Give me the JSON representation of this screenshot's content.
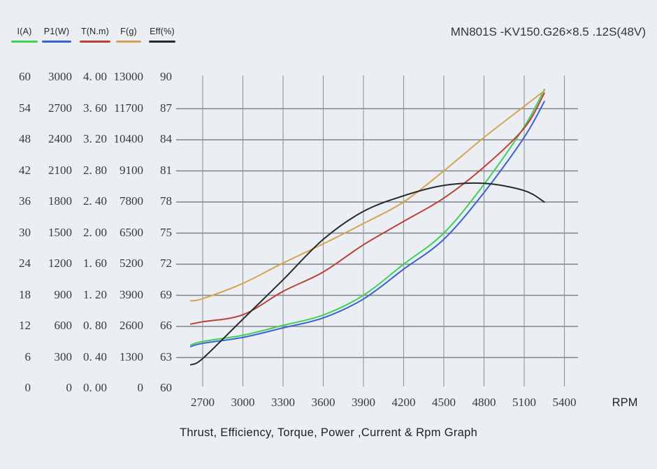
{
  "title": "MN801S -KV150.G26×8.5 .12S(48V)",
  "caption": "Thrust, Efficiency, Torque, Power ,Current & Rpm Graph",
  "legend": {
    "items": [
      {
        "label": "I(A)",
        "color": "#3ed158"
      },
      {
        "label": "P1(W)",
        "color": "#3d5fd6"
      },
      {
        "label": "T(N.m)",
        "color": "#bd4038"
      },
      {
        "label": "F(g)",
        "color": "#d5a351"
      },
      {
        "label": "Eff(%)",
        "color": "#29292b"
      }
    ]
  },
  "axis_labels": {
    "columns": [
      "I(A)",
      "P1(W)",
      "T(N.m)",
      "F(g)",
      "Eff(%)"
    ],
    "rows": [
      [
        "60",
        "3000",
        "4. 00",
        "13000",
        "90"
      ],
      [
        "54",
        "2700",
        "3. 60",
        "11700",
        "87"
      ],
      [
        "48",
        "2400",
        "3. 20",
        "10400",
        "84"
      ],
      [
        "42",
        "2100",
        "2. 80",
        "9100",
        "81"
      ],
      [
        "36",
        "1800",
        "2. 40",
        "7800",
        "78"
      ],
      [
        "30",
        "1500",
        "2. 00",
        "6500",
        "75"
      ],
      [
        "24",
        "1200",
        "1. 60",
        "5200",
        "72"
      ],
      [
        "18",
        "900",
        "1. 20",
        "3900",
        "69"
      ],
      [
        "12",
        "600",
        "0. 80",
        "2600",
        "66"
      ],
      [
        "6",
        "300",
        "0. 40",
        "1300",
        "63"
      ],
      [
        "0",
        "0",
        "0. 00",
        "0",
        "60"
      ]
    ]
  },
  "x_axis": {
    "ticks": [
      "2700",
      "3000",
      "3300",
      "3600",
      "3900",
      "4200",
      "4500",
      "4800",
      "5100",
      "5400"
    ],
    "unit": "RPM"
  },
  "colors": {
    "background": "#ebeff3",
    "grid_horizontal": "#7d828c",
    "grid_vertical": "#8f949c",
    "text": "#36393d"
  },
  "chart_data": {
    "type": "line",
    "title": "MN801S -KV150.G26×8.5 .12S(48V)",
    "xlabel": "RPM",
    "x_range": [
      2550,
      5400
    ],
    "grid": "on",
    "legend_position": "top-left",
    "x_rpm": [
      2610,
      2700,
      3000,
      3300,
      3600,
      3900,
      4200,
      4500,
      4800,
      5100,
      5250
    ],
    "series": [
      {
        "name": "I(A)",
        "axis": "I",
        "color": "#3ed158",
        "values": [
          8.4,
          9.1,
          10.3,
          12.2,
          14.2,
          18.0,
          24.0,
          30.0,
          39.4,
          50.5,
          57.7
        ]
      },
      {
        "name": "P1(W)",
        "axis": "P1",
        "color": "#3d5fd6",
        "values": [
          405,
          437,
          494,
          586,
          682,
          864,
          1152,
          1440,
          1891,
          2424,
          2770
        ]
      },
      {
        "name": "T(N.m)",
        "axis": "T",
        "color": "#bd4038",
        "values": [
          0.83,
          0.86,
          0.95,
          1.25,
          1.5,
          1.85,
          2.15,
          2.45,
          2.85,
          3.35,
          3.8
        ]
      },
      {
        "name": "F(g)",
        "axis": "F",
        "color": "#d5a351",
        "values": [
          3670,
          3760,
          4400,
          5250,
          6050,
          6900,
          7800,
          9100,
          10500,
          11800,
          12450
        ]
      },
      {
        "name": "Eff(%)",
        "axis": "Eff",
        "color": "#29292b",
        "values": [
          62.3,
          62.9,
          66.7,
          70.5,
          74.4,
          77.1,
          78.6,
          79.6,
          79.8,
          79.1,
          78.0
        ]
      }
    ],
    "axes": {
      "I": {
        "min": 0,
        "max": 60,
        "step": 6
      },
      "P1": {
        "min": 0,
        "max": 3000,
        "step": 300
      },
      "T": {
        "min": 0,
        "max": 4.0,
        "step": 0.4
      },
      "F": {
        "min": 0,
        "max": 13000,
        "step": 1300
      },
      "Eff": {
        "min": 60,
        "max": 90,
        "step": 3
      }
    }
  }
}
